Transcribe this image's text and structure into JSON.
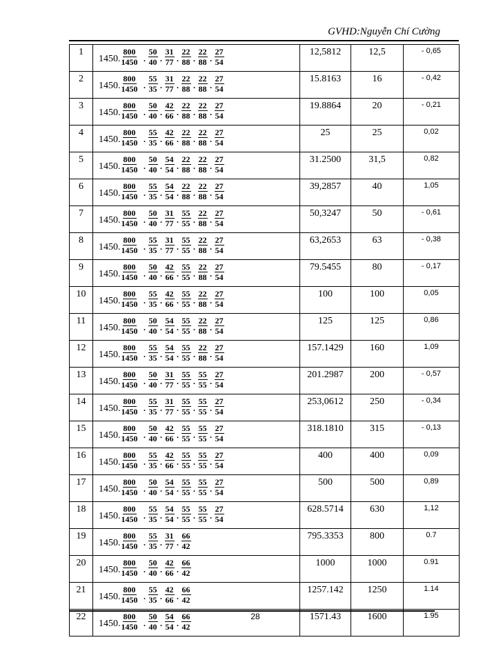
{
  "header": {
    "text": "GVHD:Nguyễn Chí Cường"
  },
  "page_number": "28",
  "coefficient": "1450.",
  "first_fraction": [
    "800",
    "1450"
  ],
  "rows": [
    {
      "num": "1",
      "f": [
        [
          "50",
          "40"
        ],
        [
          "31",
          "77"
        ],
        [
          "22",
          "88"
        ],
        [
          "22",
          "88"
        ],
        [
          "27",
          "54"
        ]
      ],
      "value": "12,5812",
      "std": "12,5",
      "err": "- 0,65"
    },
    {
      "num": "2",
      "f": [
        [
          "55",
          "35"
        ],
        [
          "31",
          "77"
        ],
        [
          "22",
          "88"
        ],
        [
          "22",
          "88"
        ],
        [
          "27",
          "54"
        ]
      ],
      "value": "15.8163",
      "std": "16",
      "err": "- 0,42"
    },
    {
      "num": "3",
      "f": [
        [
          "50",
          "40"
        ],
        [
          "42",
          "66"
        ],
        [
          "22",
          "88"
        ],
        [
          "22",
          "88"
        ],
        [
          "27",
          "54"
        ]
      ],
      "value": "19.8864",
      "std": "20",
      "err": "- 0,21"
    },
    {
      "num": "4",
      "f": [
        [
          "55",
          "35"
        ],
        [
          "42",
          "66"
        ],
        [
          "22",
          "88"
        ],
        [
          "22",
          "88"
        ],
        [
          "27",
          "54"
        ]
      ],
      "value": "25",
      "std": "25",
      "err": "0,02"
    },
    {
      "num": "5",
      "f": [
        [
          "50",
          "40"
        ],
        [
          "54",
          "54"
        ],
        [
          "22",
          "88"
        ],
        [
          "22",
          "88"
        ],
        [
          "27",
          "54"
        ]
      ],
      "value": "31.2500",
      "std": "31,5",
      "err": "0,82"
    },
    {
      "num": "6",
      "f": [
        [
          "55",
          "35"
        ],
        [
          "54",
          "54"
        ],
        [
          "22",
          "88"
        ],
        [
          "22",
          "88"
        ],
        [
          "27",
          "54"
        ]
      ],
      "value": "39,2857",
      "std": "40",
      "err": "1,05"
    },
    {
      "num": "7",
      "f": [
        [
          "50",
          "40"
        ],
        [
          "31",
          "77"
        ],
        [
          "55",
          "55"
        ],
        [
          "22",
          "88"
        ],
        [
          "27",
          "54"
        ]
      ],
      "value": "50,3247",
      "std": "50",
      "err": "- 0,61"
    },
    {
      "num": "8",
      "f": [
        [
          "55",
          "35"
        ],
        [
          "31",
          "77"
        ],
        [
          "55",
          "55"
        ],
        [
          "22",
          "88"
        ],
        [
          "27",
          "54"
        ]
      ],
      "value": "63,2653",
      "std": "63",
      "err": "- 0,38"
    },
    {
      "num": "9",
      "f": [
        [
          "50",
          "40"
        ],
        [
          "42",
          "66"
        ],
        [
          "55",
          "55"
        ],
        [
          "22",
          "88"
        ],
        [
          "27",
          "54"
        ]
      ],
      "value": "79.5455",
      "std": "80",
      "err": "- 0,17"
    },
    {
      "num": "10",
      "f": [
        [
          "55",
          "35"
        ],
        [
          "42",
          "66"
        ],
        [
          "55",
          "55"
        ],
        [
          "22",
          "88"
        ],
        [
          "27",
          "54"
        ]
      ],
      "value": "100",
      "std": "100",
      "err": "0,05"
    },
    {
      "num": "11",
      "f": [
        [
          "50",
          "40"
        ],
        [
          "54",
          "54"
        ],
        [
          "55",
          "55"
        ],
        [
          "22",
          "88"
        ],
        [
          "27",
          "54"
        ]
      ],
      "value": "125",
      "std": "125",
      "err": "0,86"
    },
    {
      "num": "12",
      "f": [
        [
          "55",
          "35"
        ],
        [
          "54",
          "54"
        ],
        [
          "55",
          "55"
        ],
        [
          "22",
          "88"
        ],
        [
          "27",
          "54"
        ]
      ],
      "value": "157.1429",
      "std": "160",
      "err": "1,09"
    },
    {
      "num": "13",
      "f": [
        [
          "50",
          "40"
        ],
        [
          "31",
          "77"
        ],
        [
          "55",
          "55"
        ],
        [
          "55",
          "55"
        ],
        [
          "27",
          "54"
        ]
      ],
      "value": "201.2987",
      "std": "200",
      "err": "- 0,57"
    },
    {
      "num": "14",
      "f": [
        [
          "55",
          "35"
        ],
        [
          "31",
          "77"
        ],
        [
          "55",
          "55"
        ],
        [
          "55",
          "55"
        ],
        [
          "27",
          "54"
        ]
      ],
      "value": "253,0612",
      "std": "250",
      "err": "- 0,34"
    },
    {
      "num": "15",
      "f": [
        [
          "50",
          "40"
        ],
        [
          "42",
          "66"
        ],
        [
          "55",
          "55"
        ],
        [
          "55",
          "55"
        ],
        [
          "27",
          "54"
        ]
      ],
      "value": "318.1810",
      "std": "315",
      "err": "- 0,13"
    },
    {
      "num": "16",
      "f": [
        [
          "55",
          "35"
        ],
        [
          "42",
          "66"
        ],
        [
          "55",
          "55"
        ],
        [
          "55",
          "55"
        ],
        [
          "27",
          "54"
        ]
      ],
      "value": "400",
      "std": "400",
      "err": "0,09"
    },
    {
      "num": "17",
      "f": [
        [
          "50",
          "40"
        ],
        [
          "54",
          "54"
        ],
        [
          "55",
          "55"
        ],
        [
          "55",
          "55"
        ],
        [
          "27",
          "54"
        ]
      ],
      "value": "500",
      "std": "500",
      "err": "0,89"
    },
    {
      "num": "18",
      "f": [
        [
          "55",
          "35"
        ],
        [
          "54",
          "54"
        ],
        [
          "55",
          "55"
        ],
        [
          "55",
          "55"
        ],
        [
          "27",
          "54"
        ]
      ],
      "value": "628.5714",
      "std": "630",
      "err": "1,12"
    },
    {
      "num": "19",
      "f": [
        [
          "55",
          "35"
        ],
        [
          "31",
          "77"
        ],
        [
          "66",
          "42"
        ]
      ],
      "value": "795.3353",
      "std": "800",
      "err": "0.7"
    },
    {
      "num": "20",
      "f": [
        [
          "50",
          "40"
        ],
        [
          "42",
          "66"
        ],
        [
          "66",
          "42"
        ]
      ],
      "value": "1000",
      "std": "1000",
      "err": "0.91"
    },
    {
      "num": "21",
      "f": [
        [
          "55",
          "35"
        ],
        [
          "42",
          "66"
        ],
        [
          "66",
          "42"
        ]
      ],
      "value": "1257.142",
      "std": "1250",
      "err": "1.14"
    },
    {
      "num": "22",
      "f": [
        [
          "50",
          "40"
        ],
        [
          "54",
          "54"
        ],
        [
          "66",
          "42"
        ]
      ],
      "value": "1571.43",
      "std": "1600",
      "err": "1.95"
    }
  ]
}
